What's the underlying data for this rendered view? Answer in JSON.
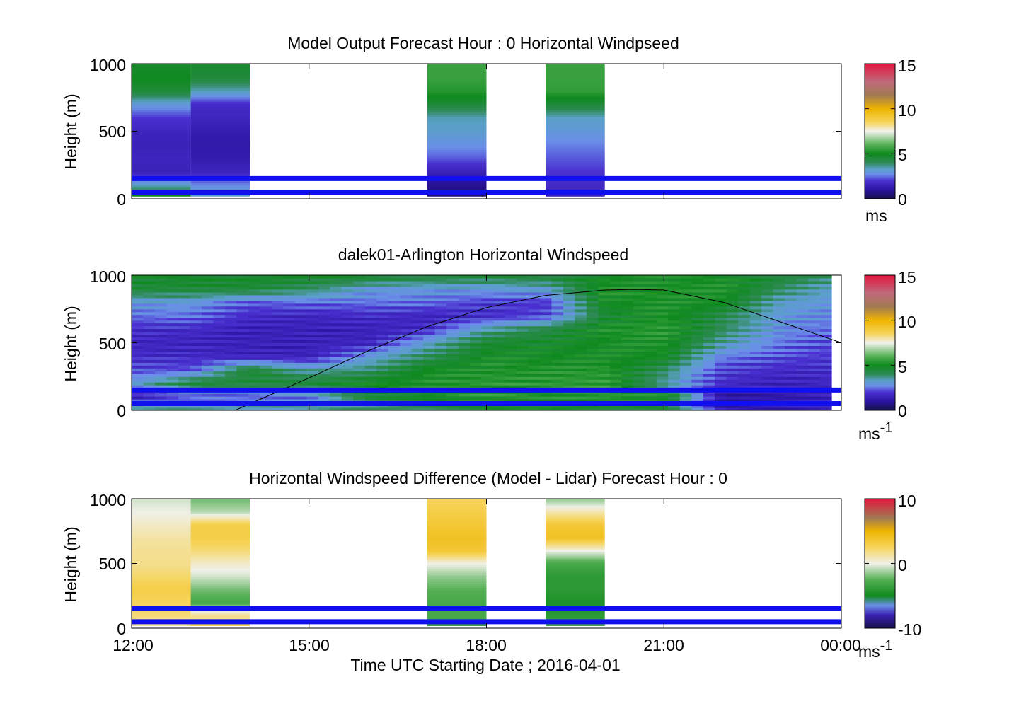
{
  "chart_data": [
    {
      "type": "heatmap",
      "title": "Model Output   Forecast Hour : 0 Horizontal Windpseed",
      "ylabel": "Height (m)",
      "ylim": [
        0,
        1000
      ],
      "yticks": [
        "0",
        "500",
        "1000"
      ],
      "xlim": [
        "12:00",
        "00:00"
      ],
      "colorbar": {
        "ticks": [
          "0",
          "5",
          "10",
          "15"
        ],
        "unit": "ms",
        "range": [
          0,
          15
        ]
      },
      "reference_lines_m": [
        50,
        150
      ],
      "columns": [
        {
          "start": "12:00",
          "end": "13:00",
          "levels_m": [
            25,
            100,
            200,
            300,
            400,
            500,
            600,
            700,
            800,
            900,
            1000
          ],
          "values": [
            5,
            3.3,
            1.5,
            1.6,
            1.5,
            1.6,
            2,
            3,
            4.5,
            5,
            4.7
          ]
        },
        {
          "start": "13:00",
          "end": "14:00",
          "levels_m": [
            25,
            100,
            200,
            300,
            400,
            500,
            600,
            700,
            800,
            900,
            1000
          ],
          "values": [
            3.3,
            2.7,
            1.6,
            1.3,
            1.2,
            1.3,
            1.6,
            1.8,
            3.4,
            4.5,
            4.7
          ]
        },
        {
          "start": "17:00",
          "end": "18:00",
          "levels_m": [
            25,
            100,
            200,
            300,
            400,
            500,
            600,
            700,
            800,
            900,
            1000
          ],
          "values": [
            0.5,
            0.8,
            1.5,
            2.3,
            2.8,
            3.2,
            3.4,
            4.5,
            5.3,
            5.6,
            5.6
          ]
        },
        {
          "start": "19:00",
          "end": "20:00",
          "levels_m": [
            25,
            100,
            200,
            300,
            400,
            500,
            600,
            700,
            800,
            900,
            1000
          ],
          "values": [
            1.5,
            1.8,
            2,
            2.3,
            2.6,
            3,
            3.3,
            4.5,
            5.5,
            5.6,
            5.6
          ]
        }
      ]
    },
    {
      "type": "heatmap",
      "title": "dalek01-Arlington  Horizontal Windspeed",
      "ylabel": "Height (m)",
      "ylim": [
        0,
        1000
      ],
      "yticks": [
        "0",
        "500",
        "1000"
      ],
      "xlim": [
        "12:00",
        "00:00"
      ],
      "colorbar": {
        "ticks": [
          "0",
          "5",
          "10",
          "15"
        ],
        "unit": "ms",
        "unit_sup": "-1",
        "range": [
          0,
          15
        ]
      },
      "reference_lines_m": [
        50,
        150
      ],
      "profile_times": [
        "12:00",
        "13:00",
        "14:00",
        "15:00",
        "16:00",
        "17:00",
        "18:00",
        "19:00",
        "20:00",
        "21:00",
        "22:00",
        "23:00",
        "23:50"
      ],
      "profile_levels_m": [
        25,
        100,
        200,
        300,
        400,
        500,
        600,
        700,
        800,
        900,
        1000
      ],
      "profile_values": [
        [
          3.5,
          1.3,
          3.0,
          2.2,
          1.8,
          1.6,
          1.8,
          2.5,
          3.0,
          4.5,
          4.8
        ],
        [
          3.5,
          2.2,
          4.5,
          2.2,
          1.8,
          1.6,
          1.8,
          2.5,
          3.0,
          4.5,
          4.8
        ],
        [
          3.5,
          2.2,
          4.5,
          4.6,
          1.5,
          1.5,
          1.5,
          1.8,
          2.3,
          4.5,
          4.8
        ],
        [
          3.5,
          2.5,
          4.5,
          3.5,
          1.5,
          1.5,
          1.5,
          1.6,
          2.5,
          4.0,
          4.8
        ],
        [
          3.8,
          4.5,
          5.0,
          3.8,
          3.0,
          1.6,
          1.5,
          1.8,
          2.5,
          3.0,
          4.8
        ],
        [
          4.2,
          5.0,
          5.2,
          5.0,
          4.0,
          3.2,
          1.8,
          1.6,
          2.5,
          3.0,
          4.5
        ],
        [
          4.8,
          5.4,
          5.4,
          5.2,
          5.0,
          4.6,
          3.5,
          1.8,
          2.0,
          3.0,
          4.5
        ],
        [
          4.8,
          5.2,
          5.4,
          5.2,
          5.0,
          4.8,
          4.2,
          2.2,
          2.0,
          3.2,
          4.5
        ],
        [
          4.8,
          5.4,
          5.5,
          5.3,
          5.0,
          5.0,
          5.2,
          4.5,
          5.0,
          5.2,
          5.0
        ],
        [
          4.6,
          5.2,
          3.5,
          4.0,
          5.0,
          5.2,
          5.4,
          5.2,
          5.2,
          5.2,
          5.0
        ],
        [
          1.2,
          1.0,
          1.8,
          2.0,
          2.6,
          3.5,
          4.0,
          4.2,
          5.0,
          5.2,
          5.0
        ],
        [
          1.3,
          1.2,
          1.5,
          1.8,
          2.2,
          2.5,
          2.8,
          3.0,
          3.2,
          4.0,
          4.5
        ],
        [
          1.5,
          1.5,
          1.7,
          1.8,
          2.0,
          2.2,
          2.4,
          2.7,
          3.0,
          3.2,
          4.0
        ]
      ],
      "boundary_curve_m": {
        "x": [
          "13:45",
          "15:00",
          "16:00",
          "17:00",
          "18:00",
          "19:00",
          "20:00",
          "20:30",
          "21:00",
          "22:00",
          "23:00",
          "00:00"
        ],
        "y": [
          0,
          240,
          440,
          620,
          760,
          850,
          890,
          895,
          890,
          800,
          650,
          500
        ]
      }
    },
    {
      "type": "heatmap",
      "title": "Horizontal Windspeed Difference (Model - Lidar) Forecast Hour : 0",
      "ylabel": "Height (m)",
      "xlabel": "Time UTC  Starting Date ; 2016-04-01",
      "ylim": [
        0,
        1000
      ],
      "yticks": [
        "0",
        "500",
        "1000"
      ],
      "xticks": [
        "12:00",
        "15:00",
        "18:00",
        "21:00",
        "00:00"
      ],
      "colorbar": {
        "ticks": [
          "-10",
          "0",
          "10"
        ],
        "unit": "ms",
        "unit_sup": "-1",
        "range": [
          -10,
          10
        ]
      },
      "reference_lines_m": [
        50,
        150
      ],
      "columns": [
        {
          "start": "12:00",
          "end": "13:00",
          "levels_m": [
            25,
            100,
            200,
            300,
            400,
            500,
            600,
            700,
            800,
            900,
            1000
          ],
          "values": [
            1.2,
            2.0,
            2.5,
            3.0,
            2.2,
            1.6,
            1.5,
            1.2,
            0.6,
            0.0,
            -0.5
          ]
        },
        {
          "start": "13:00",
          "end": "14:00",
          "levels_m": [
            25,
            100,
            200,
            300,
            400,
            500,
            600,
            700,
            800,
            900,
            1000
          ],
          "values": [
            2.5,
            1.5,
            -3.0,
            -2.0,
            -0.5,
            0.5,
            2.0,
            3.0,
            3.0,
            -1.0,
            -2.0
          ]
        },
        {
          "start": "17:00",
          "end": "18:00",
          "levels_m": [
            25,
            100,
            200,
            300,
            400,
            500,
            600,
            700,
            800,
            900,
            1000
          ],
          "values": [
            -3.5,
            -3.0,
            -3.0,
            -2.5,
            -1.5,
            0.0,
            3.5,
            4.0,
            3.5,
            3.0,
            2.5
          ]
        },
        {
          "start": "19:00",
          "end": "20:00",
          "levels_m": [
            25,
            100,
            200,
            300,
            400,
            500,
            600,
            700,
            800,
            900,
            1000
          ],
          "values": [
            -3.0,
            -4.0,
            -4.5,
            -4.0,
            -4.0,
            -3.0,
            0.0,
            4.0,
            3.5,
            1.0,
            -1.5
          ]
        }
      ]
    }
  ]
}
